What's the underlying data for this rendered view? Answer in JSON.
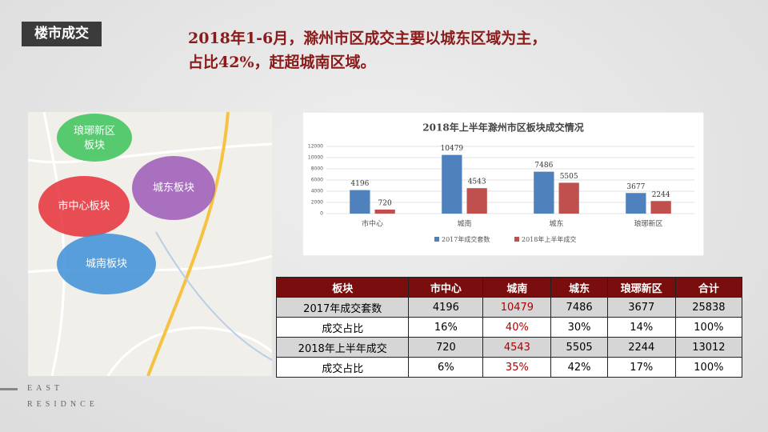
{
  "tag": "楼市成交",
  "headline": [
    "2018年1-6月，滁州市区成交主要以城东区域为主，",
    "占比42%，赶超城南区域。"
  ],
  "map": {
    "bubbles": [
      [
        "琅琊新区",
        "板块"
      ],
      [
        "城东板块"
      ],
      [
        "市中心板块"
      ],
      [
        "城南板块"
      ]
    ]
  },
  "chart_data": {
    "type": "bar",
    "title": "2018年上半年滁州市区板块成交情况",
    "categories": [
      "市中心",
      "城南",
      "城东",
      "琅琊新区"
    ],
    "series": [
      {
        "name": "2017年成交套数",
        "color": "#4f81bd",
        "values": [
          4196,
          10479,
          7486,
          3677
        ]
      },
      {
        "name": "2018年上半年成交",
        "color": "#c0504d",
        "values": [
          720,
          4543,
          5505,
          2244
        ]
      }
    ],
    "ylim": [
      0,
      12000
    ],
    "yticks": [
      0,
      2000,
      4000,
      6000,
      8000,
      10000,
      12000
    ],
    "grid": true,
    "data_labels": true
  },
  "table": {
    "header": [
      "板块",
      "市中心",
      "城南",
      "城东",
      "琅琊新区",
      "合计"
    ],
    "rows": [
      [
        "2017年成交套数",
        "4196",
        "10479",
        "7486",
        "3677",
        "25838"
      ],
      [
        "成交占比",
        "16%",
        "40%",
        "30%",
        "14%",
        "100%"
      ],
      [
        "2018年上半年成交",
        "720",
        "4543",
        "5505",
        "2244",
        "13012"
      ],
      [
        "成交占比",
        "6%",
        "35%",
        "42%",
        "17%",
        "100%"
      ]
    ]
  },
  "footer": [
    "EAST",
    "RESIDNCE"
  ]
}
